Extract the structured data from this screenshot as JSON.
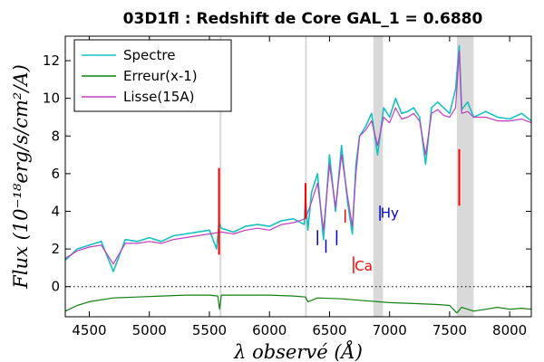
{
  "chart_data": {
    "type": "line",
    "title": "03D1fl : Redshift de Core GAL_1 = 0.6880",
    "xlabel": "λ observé (Å)",
    "ylabel": "Flux (10⁻¹⁸erg/s/cm²/A)",
    "xlim": [
      4300,
      8180
    ],
    "ylim": [
      -1.6,
      13.3
    ],
    "xticks": [
      4500,
      5000,
      5500,
      6000,
      6500,
      7000,
      7500,
      8000
    ],
    "yticks": [
      0,
      2,
      4,
      6,
      8,
      10,
      12
    ],
    "grid": false,
    "legend_position": "top-left",
    "zero_line": 0,
    "series": [
      {
        "name": "Spectre",
        "color": "#17bfbf",
        "x": [
          4300,
          4400,
          4500,
          4600,
          4700,
          4800,
          4900,
          5000,
          5100,
          5200,
          5300,
          5400,
          5500,
          5560,
          5580,
          5600,
          5700,
          5800,
          5900,
          6000,
          6100,
          6200,
          6290,
          6300,
          6320,
          6350,
          6400,
          6450,
          6500,
          6550,
          6600,
          6650,
          6690,
          6720,
          6750,
          6800,
          6850,
          6900,
          6950,
          7000,
          7050,
          7100,
          7150,
          7200,
          7250,
          7300,
          7350,
          7400,
          7450,
          7500,
          7550,
          7580,
          7600,
          7650,
          7700,
          7800,
          7900,
          8000,
          8100,
          8180
        ],
        "y": [
          1.4,
          2.0,
          2.2,
          2.4,
          0.8,
          2.5,
          2.4,
          2.6,
          2.4,
          2.7,
          2.8,
          2.9,
          3.0,
          2.0,
          3.4,
          3.1,
          2.9,
          3.2,
          3.3,
          3.2,
          3.5,
          3.6,
          3.3,
          4.8,
          3.0,
          5.0,
          6.0,
          2.5,
          7.0,
          4.0,
          7.5,
          4.5,
          2.8,
          6.5,
          8.0,
          8.5,
          9.2,
          7.0,
          9.5,
          9.0,
          10.0,
          9.2,
          9.3,
          9.5,
          9.0,
          6.5,
          9.5,
          9.8,
          9.5,
          9.2,
          10.5,
          12.8,
          9.4,
          9.8,
          9.0,
          9.3,
          9.0,
          8.9,
          9.2,
          8.8
        ]
      },
      {
        "name": "Erreur(x-1)",
        "color": "#118011",
        "x": [
          4300,
          4400,
          4500,
          4700,
          4900,
          5100,
          5300,
          5500,
          5570,
          5585,
          5600,
          5800,
          6000,
          6200,
          6300,
          6320,
          6400,
          6600,
          6800,
          7000,
          7200,
          7400,
          7500,
          7560,
          7600,
          7700,
          7800,
          7900,
          8000,
          8100,
          8180
        ],
        "y": [
          -1.3,
          -1.0,
          -0.8,
          -0.6,
          -0.55,
          -0.5,
          -0.45,
          -0.45,
          -0.5,
          -1.2,
          -0.45,
          -0.45,
          -0.45,
          -0.5,
          -0.55,
          -0.8,
          -0.6,
          -0.65,
          -0.75,
          -0.85,
          -0.9,
          -0.95,
          -1.0,
          -1.4,
          -1.1,
          -1.3,
          -1.2,
          -1.1,
          -1.2,
          -1.15,
          -1.2
        ]
      },
      {
        "name": "Lisse(15A)",
        "color": "#bf3fbf",
        "x": [
          4300,
          4400,
          4500,
          4600,
          4700,
          4800,
          4900,
          5000,
          5100,
          5200,
          5300,
          5400,
          5500,
          5600,
          5700,
          5800,
          5900,
          6000,
          6100,
          6200,
          6300,
          6350,
          6400,
          6450,
          6500,
          6550,
          6600,
          6650,
          6690,
          6720,
          6750,
          6800,
          6850,
          6900,
          6950,
          7000,
          7050,
          7100,
          7150,
          7200,
          7250,
          7300,
          7350,
          7400,
          7450,
          7500,
          7550,
          7580,
          7600,
          7650,
          7700,
          7800,
          7900,
          8000,
          8100,
          8180
        ],
        "y": [
          1.5,
          1.9,
          2.1,
          2.2,
          1.2,
          2.3,
          2.3,
          2.4,
          2.3,
          2.5,
          2.6,
          2.7,
          2.8,
          2.9,
          2.8,
          3.0,
          3.1,
          3.0,
          3.3,
          3.4,
          3.6,
          4.5,
          5.5,
          3.0,
          6.5,
          4.2,
          7.0,
          4.8,
          3.2,
          6.0,
          8.0,
          8.3,
          8.8,
          7.5,
          9.0,
          8.7,
          9.5,
          8.9,
          9.0,
          9.2,
          8.8,
          7.0,
          9.2,
          9.4,
          9.1,
          9.0,
          9.5,
          12.5,
          9.2,
          9.3,
          9.0,
          9.0,
          8.8,
          8.8,
          8.9,
          8.7
        ]
      }
    ],
    "shaded_bands": [
      [
        5585,
        5592
      ],
      [
        6296,
        6306
      ],
      [
        6865,
        6945
      ],
      [
        7560,
        7700
      ]
    ],
    "vertical_spikes": [
      {
        "x": 5580,
        "y0": 1.7,
        "y1": 6.3,
        "color": "#ff0000"
      },
      {
        "x": 6300,
        "y0": 3.6,
        "y1": 5.5,
        "color": "#ff0000"
      },
      {
        "x": 7580,
        "y0": 4.3,
        "y1": 7.3,
        "color": "#ff0000"
      }
    ],
    "line_markers": [
      {
        "x": 6400,
        "y0": 2.2,
        "y1": 3.0,
        "color": "#0000cc"
      },
      {
        "x": 6470,
        "y0": 1.8,
        "y1": 2.5,
        "color": "#0000cc"
      },
      {
        "x": 6560,
        "y0": 2.2,
        "y1": 3.0,
        "color": "#0000cc"
      },
      {
        "x": 6630,
        "y0": 3.4,
        "y1": 4.1,
        "color": "#ff0000"
      },
      {
        "x": 6700,
        "y0": 0.7,
        "y1": 1.6,
        "color": "#ff0000"
      },
      {
        "x": 6920,
        "y0": 3.5,
        "y1": 4.3,
        "color": "#0000cc"
      }
    ],
    "line_labels": [
      {
        "text": "Ca",
        "x": 6710,
        "y": 1.1,
        "color": "#ff0000"
      },
      {
        "text": "Hy",
        "x": 6925,
        "y": 3.9,
        "color": "#0000cc"
      }
    ]
  }
}
